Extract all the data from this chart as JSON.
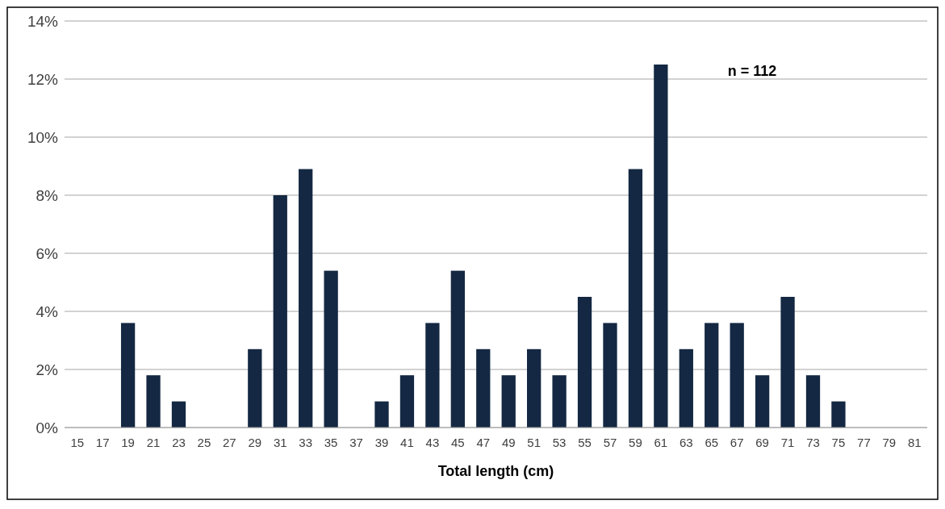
{
  "chart_data": {
    "type": "bar",
    "xlabel": "Total length (cm)",
    "categories": [
      "15",
      "17",
      "19",
      "21",
      "23",
      "25",
      "27",
      "29",
      "31",
      "33",
      "35",
      "37",
      "39",
      "41",
      "43",
      "45",
      "47",
      "49",
      "51",
      "53",
      "55",
      "57",
      "59",
      "61",
      "63",
      "65",
      "67",
      "69",
      "71",
      "73",
      "75",
      "77",
      "79",
      "81"
    ],
    "values": [
      0,
      0,
      3.6,
      1.8,
      0.9,
      0,
      0,
      2.7,
      8.0,
      8.9,
      5.4,
      0,
      0.9,
      1.8,
      3.6,
      5.4,
      2.7,
      1.8,
      2.7,
      1.8,
      4.5,
      3.6,
      8.9,
      12.5,
      2.7,
      3.6,
      3.6,
      1.8,
      4.5,
      1.8,
      0.9,
      0,
      0,
      0
    ],
    "color": "#142843",
    "ylim": [
      0,
      14
    ],
    "yticks": [
      {
        "value": 0,
        "label": "0%"
      },
      {
        "value": 2,
        "label": "2%"
      },
      {
        "value": 4,
        "label": "4%"
      },
      {
        "value": 6,
        "label": "6%"
      },
      {
        "value": 8,
        "label": "8%"
      },
      {
        "value": 10,
        "label": "10%"
      },
      {
        "value": 12,
        "label": "12%"
      },
      {
        "value": 14,
        "label": "14%"
      }
    ],
    "grid": "y",
    "annotations": [
      "n = 112"
    ]
  }
}
